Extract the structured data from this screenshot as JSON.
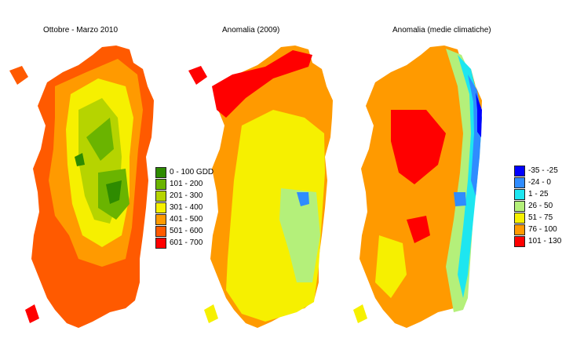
{
  "maps": [
    {
      "title": "Ottobre - Marzo 2010",
      "legend": [
        {
          "label": "0 - 100 GDD",
          "color": "#2e8b00"
        },
        {
          "label": "101 - 200",
          "color": "#6ab400"
        },
        {
          "label": "201 - 300",
          "color": "#b6d400"
        },
        {
          "label": "301 - 400",
          "color": "#f6f000"
        },
        {
          "label": "401 - 500",
          "color": "#ff9a00"
        },
        {
          "label": "501 - 600",
          "color": "#ff5a00"
        },
        {
          "label": "601 - 700",
          "color": "#ff0000"
        }
      ]
    },
    {
      "title": "Anomalia (2009)"
    },
    {
      "title": "Anomalia (medie climatiche)",
      "legend": [
        {
          "label": "-35 - -25",
          "color": "#0000ff"
        },
        {
          "label": "-24 - 0",
          "color": "#2f8cff"
        },
        {
          "label": "1 - 25",
          "color": "#1ee6f0"
        },
        {
          "label": "26 - 50",
          "color": "#b4f07a"
        },
        {
          "label": "51 - 75",
          "color": "#f6f000"
        },
        {
          "label": "76 - 100",
          "color": "#ff9a00"
        },
        {
          "label": "101 - 130",
          "color": "#ff0000"
        }
      ]
    }
  ]
}
